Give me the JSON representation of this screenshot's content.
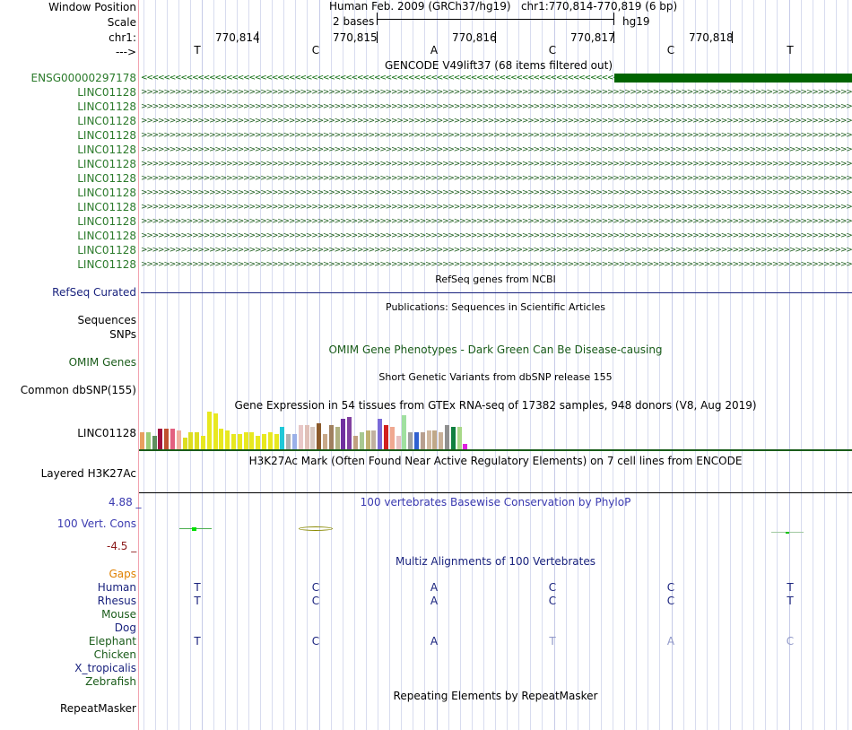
{
  "header": {
    "window_position_label": "Window Position",
    "scale_label": "Scale",
    "chrom_label": "chr1:",
    "strand_label": "--->",
    "title": "Human Feb. 2009 (GRCh37/hg19)   chr1:770,814-770,819 (6 bp)",
    "scale_text": "2 bases",
    "assembly": "hg19",
    "positions": [
      "770,814",
      "770,815",
      "770,816",
      "770,817",
      "770,818"
    ],
    "bases": [
      "T",
      "C",
      "A",
      "C",
      "C",
      "T"
    ]
  },
  "gencode": {
    "title": "GENCODE V49lift37 (68 items filtered out)",
    "first_gene": "ENSG00000297178",
    "genes": [
      "LINC01128",
      "LINC01128",
      "LINC01128",
      "LINC01128",
      "LINC01128",
      "LINC01128",
      "LINC01128",
      "LINC01128",
      "LINC01128",
      "LINC01128",
      "LINC01128",
      "LINC01128",
      "LINC01128"
    ],
    "color": "#006400",
    "left_arrows": "<<<<<<<<<<<<<<<<<<<<<<<<<<<<<<<<<<<<<<<<<<<<<<<<<<<<<<<<<<<<<<<<<<<<<<<<<<<<<<<<<<<<<<<<<<<<<<<<<<<<<<<<<<<<<<<<<<<<<<<<<<<<<<<<<<<<<<<<<<<<<<<<<<<<<<<<<<<<<<<<<<<<<<<<<<<<",
    "right_arrows": ">>>>>>>>>>>>>>>>>>>>>>>>>>>>>>>>>>>>>>>>>>>>>>>>>>>>>>>>>>>>>>>>>>>>>>>>>>>>>>>>>>>>>>>>>>>>>>>>>>>>>>>>>>>>>>>>>>>>>>>>>>>>>>>>>>>>>>>>>>>>>>>>>>>>>>>>>>>>>>>>>>>>>>>>>>>>>>>>>>>>>>>>>>>>>>>>>>>>>>>>>>>>>>>>>>>>>>>>>>>>>>>>>>>>>>>>>>>>>>"
  },
  "refseq": {
    "title": "RefSeq genes from NCBI",
    "label": "RefSeq Curated",
    "color": "#1a237e"
  },
  "publications": {
    "title": "Publications: Sequences in Scientific Articles",
    "label1": "Sequences",
    "label2": "SNPs"
  },
  "omim": {
    "title": "OMIM Gene Phenotypes - Dark Green Can Be Disease-causing",
    "label": "OMIM Genes"
  },
  "dbsnp": {
    "title": "Short Genetic Variants from dbSNP release 155",
    "label": "Common dbSNP(155)"
  },
  "gtex": {
    "title": "Gene Expression in 54 tissues from GTEx RNA-seq of 17382 samples, 948 donors (V8, Aug 2019)",
    "label": "LINC01128",
    "bars": [
      {
        "level": 0.45,
        "color": "#e8a060"
      },
      {
        "level": 0.45,
        "color": "#9acd76"
      },
      {
        "level": 0.35,
        "color": "#5f8f5f"
      },
      {
        "level": 0.55,
        "color": "#a01040"
      },
      {
        "level": 0.55,
        "color": "#c05030"
      },
      {
        "level": 0.55,
        "color": "#e36080"
      },
      {
        "level": 0.5,
        "color": "#f0b0a0"
      },
      {
        "level": 0.3,
        "color": "#dddd20"
      },
      {
        "level": 0.45,
        "color": "#dddd20"
      },
      {
        "level": 0.45,
        "color": "#dddd20"
      },
      {
        "level": 0.35,
        "color": "#e8e820"
      },
      {
        "level": 1.0,
        "color": "#e8e820"
      },
      {
        "level": 0.95,
        "color": "#e8e820"
      },
      {
        "level": 0.55,
        "color": "#e8e820"
      },
      {
        "level": 0.5,
        "color": "#e8e820"
      },
      {
        "level": 0.4,
        "color": "#e8e820"
      },
      {
        "level": 0.4,
        "color": "#e8e820"
      },
      {
        "level": 0.45,
        "color": "#e8e820"
      },
      {
        "level": 0.45,
        "color": "#e8e820"
      },
      {
        "level": 0.35,
        "color": "#e8e820"
      },
      {
        "level": 0.4,
        "color": "#e8e820"
      },
      {
        "level": 0.45,
        "color": "#e8e820"
      },
      {
        "level": 0.4,
        "color": "#e8e820"
      },
      {
        "level": 0.6,
        "color": "#20c8d8"
      },
      {
        "level": 0.4,
        "color": "#b0b0b0"
      },
      {
        "level": 0.4,
        "color": "#9ab0e8"
      },
      {
        "level": 0.65,
        "color": "#e8c8c8"
      },
      {
        "level": 0.65,
        "color": "#e0c0b8"
      },
      {
        "level": 0.6,
        "color": "#d8c8c0"
      },
      {
        "level": 0.7,
        "color": "#8b5a2b"
      },
      {
        "level": 0.4,
        "color": "#c8a888"
      },
      {
        "level": 0.65,
        "color": "#a08060"
      },
      {
        "level": 0.6,
        "color": "#b0b080"
      },
      {
        "level": 0.8,
        "color": "#7030a0"
      },
      {
        "level": 0.85,
        "color": "#8040a0"
      },
      {
        "level": 0.35,
        "color": "#c0a080"
      },
      {
        "level": 0.45,
        "color": "#a8c890"
      },
      {
        "level": 0.5,
        "color": "#c0b070"
      },
      {
        "level": 0.5,
        "color": "#c0b0a0"
      },
      {
        "level": 0.8,
        "color": "#7a6ad8"
      },
      {
        "level": 0.65,
        "color": "#d02020"
      },
      {
        "level": 0.6,
        "color": "#f0a890"
      },
      {
        "level": 0.35,
        "color": "#e8c0c0"
      },
      {
        "level": 0.9,
        "color": "#a0e0a0"
      },
      {
        "level": 0.45,
        "color": "#a0a0a0"
      },
      {
        "level": 0.45,
        "color": "#3060d0"
      },
      {
        "level": 0.45,
        "color": "#b8a090"
      },
      {
        "level": 0.5,
        "color": "#d0b8a0"
      },
      {
        "level": 0.5,
        "color": "#c0a888"
      },
      {
        "level": 0.45,
        "color": "#c8b098"
      },
      {
        "level": 0.65,
        "color": "#909090"
      },
      {
        "level": 0.6,
        "color": "#108040"
      },
      {
        "level": 0.6,
        "color": "#a8d888"
      },
      {
        "level": 0.15,
        "color": "#e020e0"
      }
    ]
  },
  "h3k27ac": {
    "title": "H3K27Ac Mark (Often Found Near Active Regulatory Elements) on 7 cell lines from ENCODE",
    "label": "Layered H3K27Ac"
  },
  "phylop": {
    "title": "100 vertebrates Basewise Conservation by PhyloP",
    "label": "100 Vert. Cons",
    "max": "4.88 _",
    "min": "-4.5 _",
    "title_color": "#3a3ab0",
    "min_color": "#8b1a1a"
  },
  "multiz": {
    "title": "Multiz Alignments of 100 Vertebrates",
    "gaps_label": "Gaps",
    "species": [
      {
        "name": "Human",
        "bases": [
          "T",
          "C",
          "A",
          "C",
          "C",
          "T"
        ]
      },
      {
        "name": "Rhesus",
        "bases": [
          "T",
          "C",
          "A",
          "C",
          "C",
          "T"
        ]
      },
      {
        "name": "Mouse",
        "bases": []
      },
      {
        "name": "Dog",
        "bases": []
      },
      {
        "name": "Elephant",
        "bases": [
          "T",
          "C",
          "A",
          "T",
          "A",
          "C"
        ]
      },
      {
        "name": "Chicken",
        "bases": []
      },
      {
        "name": "X_tropicalis",
        "bases": []
      },
      {
        "name": "Zebrafish",
        "bases": []
      }
    ]
  },
  "repeatmasker": {
    "title": "Repeating Elements by RepeatMasker",
    "label": "RepeatMasker"
  }
}
